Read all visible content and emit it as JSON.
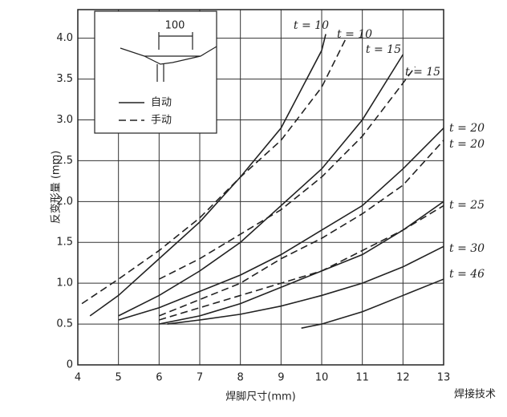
{
  "chart_data": {
    "type": "line",
    "x_label": "焊脚尺寸(mm)",
    "y_label": "反变形量 (mm)",
    "xlim": [
      4,
      13
    ],
    "ylim": [
      0,
      4.35
    ],
    "xticks": [
      4,
      5,
      6,
      7,
      8,
      9,
      10,
      11,
      12,
      13
    ],
    "yticks": [
      0,
      0.5,
      {
        "value": 1,
        "label": "1.0"
      },
      1.5,
      {
        "value": 2,
        "label": "2.0"
      },
      2.5,
      {
        "value": 3,
        "label": "3.0"
      },
      3.5,
      {
        "value": 4,
        "label": "4.0"
      }
    ],
    "grid": true,
    "legend": [
      {
        "label": "自动",
        "dashed": false
      },
      {
        "label": "手动",
        "dashed": true
      }
    ],
    "inset_label": "100",
    "watermark": "焊接技术",
    "series": [
      {
        "name": "t = 10",
        "dashed": false,
        "color": "#222",
        "x": [
          4.3,
          5,
          6,
          7,
          8,
          9,
          10,
          10.1
        ],
        "values": [
          0.6,
          0.85,
          1.3,
          1.75,
          2.3,
          2.9,
          3.85,
          4.05
        ]
      },
      {
        "name": "t = 10",
        "dashed": true,
        "color": "#222",
        "x": [
          4.1,
          5,
          6,
          7,
          8,
          9,
          10,
          10.6
        ],
        "values": [
          0.75,
          1.05,
          1.4,
          1.8,
          2.3,
          2.75,
          3.4,
          4.0
        ]
      },
      {
        "name": "t = 15",
        "dashed": false,
        "color": "#222",
        "x": [
          5,
          6,
          7,
          8,
          9,
          10,
          11,
          12
        ],
        "values": [
          0.6,
          0.85,
          1.15,
          1.5,
          1.95,
          2.4,
          3.0,
          3.8
        ]
      },
      {
        "name": "t = 15",
        "dashed": true,
        "color": "#222",
        "x": [
          6,
          7,
          8,
          9,
          10,
          11,
          12,
          12.3
        ],
        "values": [
          1.05,
          1.3,
          1.6,
          1.9,
          2.3,
          2.8,
          3.45,
          3.65
        ]
      },
      {
        "name": "t = 20",
        "dashed": false,
        "color": "#222",
        "x": [
          5,
          6,
          7,
          8,
          9,
          10,
          11,
          12,
          13
        ],
        "values": [
          0.55,
          0.7,
          0.9,
          1.1,
          1.35,
          1.65,
          1.95,
          2.4,
          2.9
        ]
      },
      {
        "name": "t = 20",
        "dashed": true,
        "color": "#222",
        "x": [
          6,
          7,
          8,
          9,
          10,
          11,
          12,
          13
        ],
        "values": [
          0.6,
          0.8,
          1.0,
          1.3,
          1.55,
          1.85,
          2.2,
          2.75
        ]
      },
      {
        "name": "t = 25",
        "dashed": false,
        "color": "#222",
        "x": [
          6,
          7,
          8,
          9,
          10,
          11,
          12,
          13
        ],
        "values": [
          0.5,
          0.6,
          0.75,
          0.95,
          1.15,
          1.35,
          1.65,
          2.0
        ]
      },
      {
        "dashed": true,
        "color": "#222",
        "x": [
          6,
          7,
          8,
          9,
          10,
          11,
          12,
          13
        ],
        "values": [
          0.55,
          0.7,
          0.85,
          1.0,
          1.15,
          1.4,
          1.65,
          1.95
        ]
      },
      {
        "name": "t = 30",
        "dashed": false,
        "color": "#222",
        "x": [
          6.2,
          7,
          8,
          9,
          10,
          11,
          12,
          13
        ],
        "values": [
          0.5,
          0.55,
          0.62,
          0.72,
          0.85,
          1.0,
          1.2,
          1.45
        ]
      },
      {
        "name": "t = 46",
        "dashed": false,
        "color": "#222",
        "x": [
          9.5,
          10,
          11,
          12,
          13
        ],
        "values": [
          0.45,
          0.5,
          0.65,
          0.85,
          1.05
        ]
      }
    ]
  }
}
